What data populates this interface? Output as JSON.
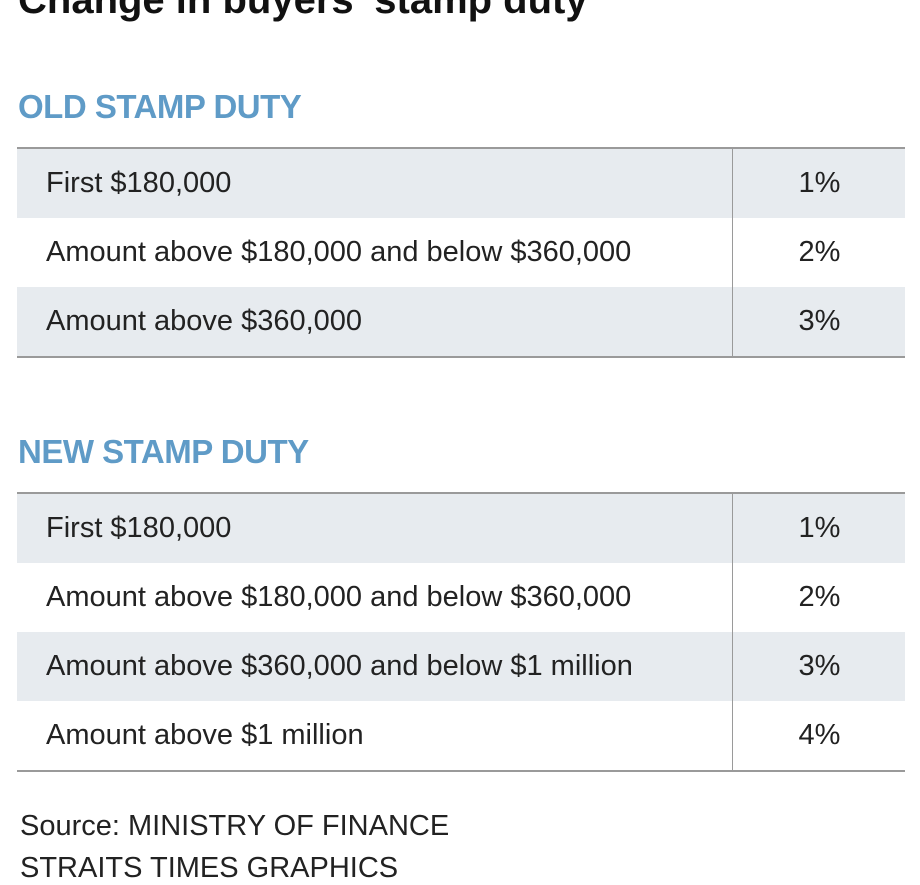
{
  "title": "Change in buyers' stamp duty",
  "sections": [
    {
      "heading": "OLD STAMP DUTY",
      "rows": [
        [
          "First $180,000",
          "1%"
        ],
        [
          "Amount above $180,000 and below $360,000",
          "2%"
        ],
        [
          "Amount above $360,000",
          "3%"
        ]
      ]
    },
    {
      "heading": "NEW STAMP DUTY",
      "rows": [
        [
          "First $180,000",
          "1%"
        ],
        [
          "Amount above $180,000 and below $360,000",
          "2%"
        ],
        [
          "Amount above $360,000 and below $1 million",
          "3%"
        ],
        [
          "Amount above $1 million",
          "4%"
        ]
      ]
    }
  ],
  "source": "Source: MINISTRY OF FINANCE",
  "credit": "STRAITS TIMES GRAPHICS"
}
